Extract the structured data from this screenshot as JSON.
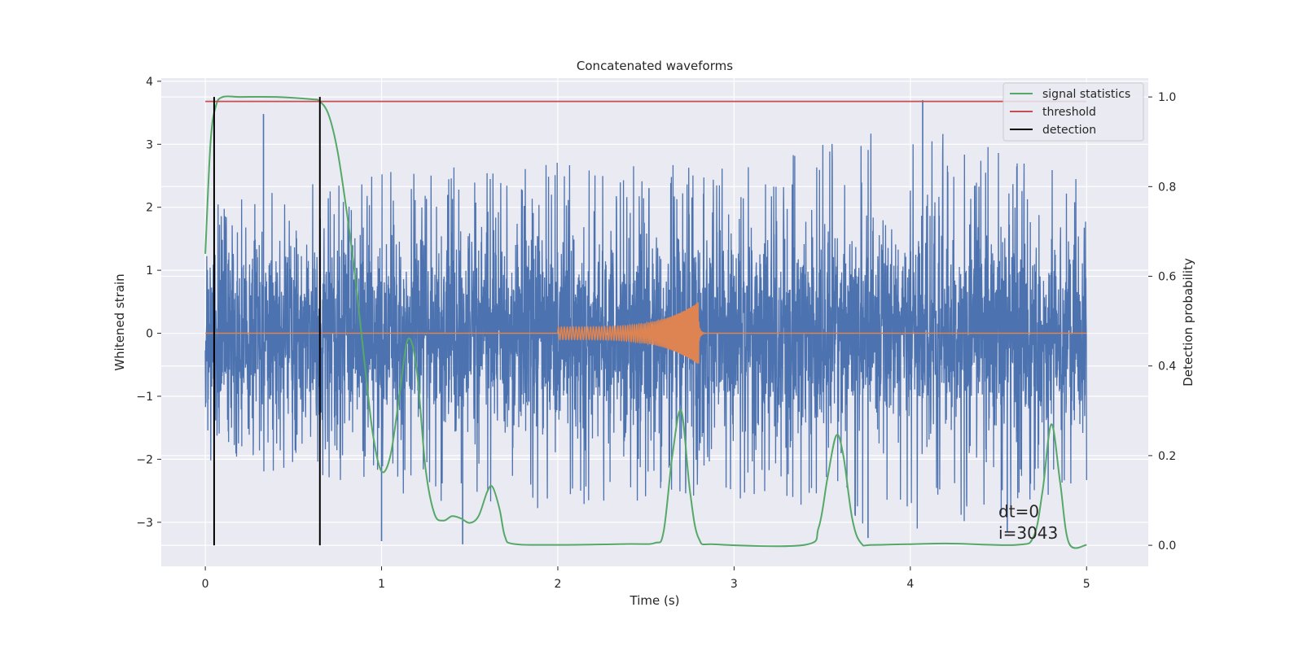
{
  "chart_data": {
    "type": "line",
    "title": "Concatenated waveforms",
    "xlabel": "Time (s)",
    "ylabel": "Whitened strain",
    "ylabel_right": "Detection probability",
    "xlim": [
      -0.25,
      5.35
    ],
    "ylim": [
      -3.7,
      4.05
    ],
    "ylim_right": [
      -0.047,
      1.042
    ],
    "x_ticks": [
      0,
      1,
      2,
      3,
      4,
      5
    ],
    "y_ticks": [
      -3,
      -2,
      -1,
      0,
      1,
      2,
      3,
      4
    ],
    "y_ticks_right": [
      0.0,
      0.2,
      0.4,
      0.6,
      0.8,
      1.0
    ],
    "grid": true,
    "legend_position": "top-right",
    "colors": {
      "strain": "#4c72b0",
      "injected": "#dd8452",
      "signal": "#55a868",
      "threshold": "#c44e52",
      "detection": "#000000",
      "plot_bg": "#eaeaf2",
      "grid": "#ffffff"
    },
    "series": [
      {
        "name": "",
        "axis": "left",
        "kind": "noise",
        "x_range": [
          0,
          5
        ],
        "amplitude_envelope": [
          [
            0,
            2.0
          ],
          [
            1,
            2.6
          ],
          [
            2,
            2.8
          ],
          [
            3,
            2.6
          ],
          [
            4,
            3.4
          ],
          [
            5,
            2.4
          ]
        ],
        "peaks": [
          {
            "x": 0.33,
            "y": 3.48
          },
          {
            "x": 4.07,
            "y": 3.7
          },
          {
            "x": 1.0,
            "y": -3.3
          },
          {
            "x": 1.46,
            "y": -3.35
          },
          {
            "x": 3.76,
            "y": -3.25
          },
          {
            "x": 4.55,
            "y": -3.15
          }
        ]
      },
      {
        "name": "",
        "axis": "left",
        "kind": "chirp",
        "baseline": 0,
        "x_range": [
          0,
          5
        ],
        "chirp_start": 2.0,
        "chirp_end": 2.8,
        "start_amplitude": 0.1,
        "peak_amplitude": 0.5,
        "ringdown_end": 2.85
      },
      {
        "name": "signal statistics",
        "axis": "right",
        "x": [
          0,
          0.03,
          0.06,
          0.1,
          0.2,
          0.4,
          0.6,
          0.65,
          0.7,
          0.75,
          0.8,
          0.85,
          0.9,
          0.95,
          1.0,
          1.05,
          1.1,
          1.15,
          1.2,
          1.25,
          1.3,
          1.35,
          1.4,
          1.45,
          1.5,
          1.55,
          1.6,
          1.63,
          1.67,
          1.7,
          1.75,
          2.0,
          2.4,
          2.55,
          2.6,
          2.65,
          2.7,
          2.75,
          2.8,
          2.9,
          3.4,
          3.48,
          3.53,
          3.58,
          3.62,
          3.67,
          3.72,
          3.8,
          4.2,
          4.6,
          4.7,
          4.75,
          4.8,
          4.85,
          4.9,
          5.0
        ],
        "values": [
          0.65,
          0.9,
          0.98,
          1.0,
          1.0,
          1.0,
          0.995,
          0.99,
          0.96,
          0.88,
          0.75,
          0.6,
          0.42,
          0.25,
          0.165,
          0.2,
          0.33,
          0.46,
          0.39,
          0.17,
          0.07,
          0.055,
          0.065,
          0.06,
          0.05,
          0.065,
          0.12,
          0.13,
          0.08,
          0.02,
          0.003,
          0.001,
          0.003,
          0.005,
          0.03,
          0.2,
          0.3,
          0.12,
          0.015,
          0.002,
          0.001,
          0.04,
          0.15,
          0.245,
          0.2,
          0.06,
          0.005,
          0.001,
          0.004,
          0.001,
          0.02,
          0.12,
          0.27,
          0.14,
          0.005,
          0.001
        ]
      },
      {
        "name": "threshold",
        "axis": "right",
        "x": [
          0,
          5
        ],
        "values": [
          0.99,
          0.99
        ]
      }
    ],
    "detections": {
      "name": "detection",
      "axis": "right",
      "x": [
        0.05,
        0.65
      ],
      "range": [
        0,
        1
      ]
    },
    "annotations": [
      {
        "text": "dt=0",
        "x": 4.5,
        "y": -2.92
      },
      {
        "text": "i=3043",
        "x": 4.5,
        "y": -3.26
      }
    ]
  }
}
